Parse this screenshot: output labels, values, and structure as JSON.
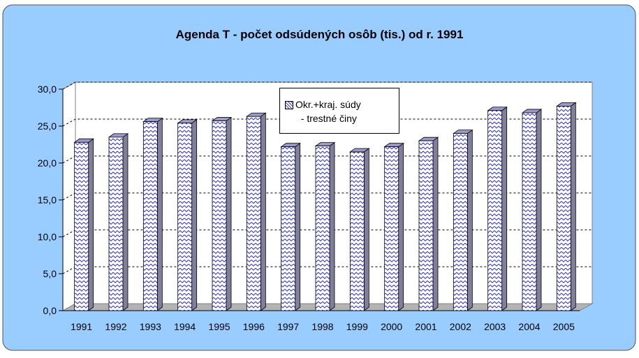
{
  "colors": {
    "background_panel": "#99ccff",
    "plot_wall": "#ffffff",
    "floor": "#b3b3b3",
    "bar_fill": "#ffffff",
    "bar_pattern": "#3a3ac8",
    "bar_side": "#7f7f9c",
    "bar_top": "#9999cc"
  },
  "chart_data": {
    "type": "bar",
    "title": "Agenda T  - počet odsúdených osôb (tis.) od r. 1991",
    "xlabel": "",
    "ylabel": "",
    "ylim": [
      0,
      30
    ],
    "yticks": [
      "0,0",
      "5,0",
      "10,0",
      "15,0",
      "20,0",
      "25,0",
      "30,0"
    ],
    "grid": true,
    "legend_position": "top-center",
    "categories": [
      "1991",
      "1992",
      "1993",
      "1994",
      "1995",
      "1996",
      "1997",
      "1998",
      "1999",
      "2000",
      "2001",
      "2002",
      "2003",
      "2004",
      "2005"
    ],
    "series": [
      {
        "name": "Okr.+kraj. súdy\n  - trestné činy",
        "values": [
          22.8,
          23.5,
          25.6,
          25.4,
          25.7,
          26.3,
          22.2,
          22.3,
          21.5,
          22.2,
          23.0,
          24.0,
          27.1,
          26.8,
          27.7
        ]
      }
    ]
  }
}
